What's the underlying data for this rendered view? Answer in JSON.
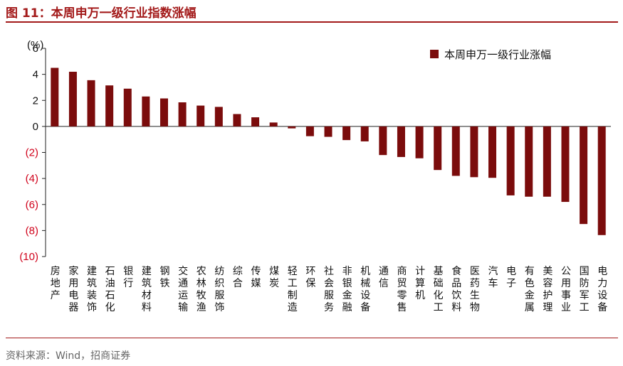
{
  "figure_title": "图 11：本周申万一级行业指数涨幅",
  "source": "资料来源：Wind，招商证券",
  "colors": {
    "bar": "#7b0c0c",
    "negative_label": "#d0021b",
    "positive_label": "#111111",
    "title": "#a31a1a"
  },
  "chart_data": {
    "type": "bar",
    "title": "本周申万一级行业指数涨幅",
    "ylabel": "(%)",
    "ylim": [
      -10,
      6
    ],
    "yticks": [
      6,
      4,
      2,
      0,
      -2,
      -4,
      -6,
      -8,
      -10
    ],
    "ytick_labels": [
      "6",
      "4",
      "2",
      "0",
      "(2)",
      "(4)",
      "(6)",
      "(8)",
      "(10)"
    ],
    "legend": "本周申万一级行业涨幅",
    "legend_position": "top-right",
    "categories": [
      "房地产",
      "家用电器",
      "建筑装饰",
      "石油石化",
      "银行",
      "建筑材料",
      "钢铁",
      "交通运输",
      "农林牧渔",
      "纺织服饰",
      "综合",
      "传媒",
      "煤炭",
      "轻工制造",
      "环保",
      "社会服务",
      "非银金融",
      "机械设备",
      "通信",
      "商贸零售",
      "计算机",
      "基础化工",
      "食品饮料",
      "医药生物",
      "汽车",
      "电子",
      "有色金属",
      "美容护理",
      "公用事业",
      "国防军工",
      "电力设备"
    ],
    "values": [
      4.5,
      4.2,
      3.55,
      3.15,
      2.9,
      2.3,
      2.15,
      1.85,
      1.6,
      1.5,
      0.95,
      0.7,
      0.3,
      -0.15,
      -0.75,
      -0.8,
      -1.05,
      -1.15,
      -2.2,
      -2.35,
      -2.45,
      -3.35,
      -3.8,
      -3.9,
      -3.95,
      -5.3,
      -5.4,
      -5.4,
      -5.8,
      -7.5,
      -8.35
    ]
  }
}
